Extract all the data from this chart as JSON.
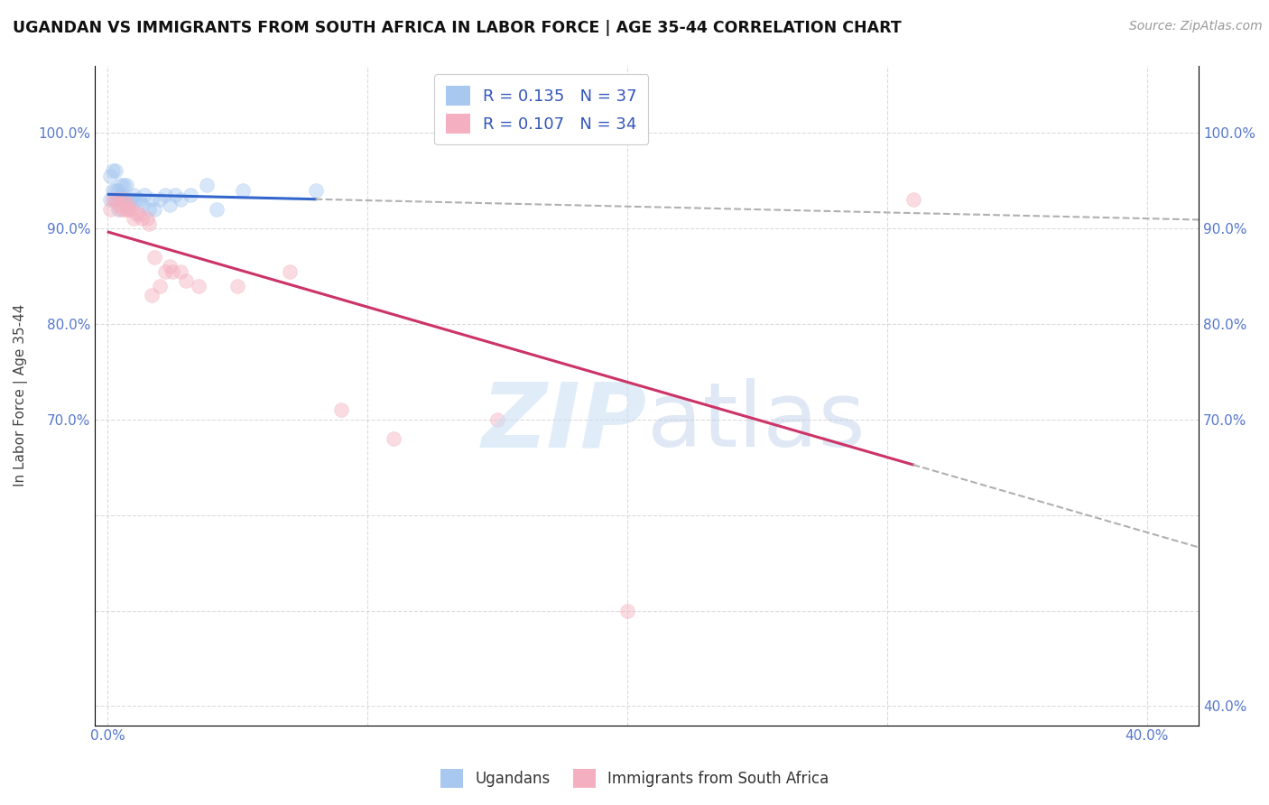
{
  "title": "UGANDAN VS IMMIGRANTS FROM SOUTH AFRICA IN LABOR FORCE | AGE 35-44 CORRELATION CHART",
  "source": "Source: ZipAtlas.com",
  "ylabel": "In Labor Force | Age 35-44",
  "ugandan_R": 0.135,
  "ugandan_N": 37,
  "immigrant_R": 0.107,
  "immigrant_N": 34,
  "ugandan_color": "#a8c8f0",
  "immigrant_color": "#f4b0c0",
  "ugandan_line_color": "#3366cc",
  "immigrant_line_color": "#cc3366",
  "trend_ext_color": "#b0b0b0",
  "background_color": "#ffffff",
  "xlim": [
    -0.005,
    0.42
  ],
  "ylim": [
    0.38,
    1.07
  ],
  "x_ticks": [
    0.0,
    0.1,
    0.2,
    0.3,
    0.4
  ],
  "x_tick_labels": [
    "0.0%",
    "",
    "",
    "",
    "40.0%"
  ],
  "y_ticks": [
    0.4,
    0.5,
    0.6,
    0.7,
    0.8,
    0.9,
    1.0
  ],
  "y_tick_labels_left": [
    "",
    "",
    "",
    "70.0%",
    "80.0%",
    "90.0%",
    "100.0%"
  ],
  "y_tick_labels_right": [
    "40.0%",
    "",
    "",
    "70.0%",
    "80.0%",
    "90.0%",
    "100.0%"
  ],
  "grid_color": "#cccccc",
  "marker_size": 130,
  "marker_alpha": 0.45,
  "ugandan_x": [
    0.001,
    0.001,
    0.002,
    0.002,
    0.003,
    0.003,
    0.003,
    0.004,
    0.004,
    0.004,
    0.005,
    0.005,
    0.005,
    0.006,
    0.006,
    0.007,
    0.007,
    0.008,
    0.009,
    0.01,
    0.011,
    0.012,
    0.013,
    0.014,
    0.016,
    0.017,
    0.018,
    0.02,
    0.022,
    0.024,
    0.026,
    0.028,
    0.032,
    0.038,
    0.042,
    0.052,
    0.08
  ],
  "ugandan_y": [
    0.93,
    0.955,
    0.94,
    0.96,
    0.94,
    0.96,
    0.93,
    0.94,
    0.93,
    0.92,
    0.945,
    0.935,
    0.93,
    0.945,
    0.93,
    0.945,
    0.925,
    0.93,
    0.93,
    0.935,
    0.93,
    0.93,
    0.925,
    0.935,
    0.92,
    0.93,
    0.92,
    0.93,
    0.935,
    0.925,
    0.935,
    0.93,
    0.935,
    0.945,
    0.92,
    0.94,
    0.94
  ],
  "immigrant_x": [
    0.001,
    0.002,
    0.003,
    0.004,
    0.005,
    0.005,
    0.006,
    0.006,
    0.007,
    0.008,
    0.008,
    0.009,
    0.01,
    0.011,
    0.012,
    0.013,
    0.015,
    0.016,
    0.017,
    0.018,
    0.02,
    0.022,
    0.024,
    0.025,
    0.028,
    0.03,
    0.035,
    0.05,
    0.07,
    0.09,
    0.11,
    0.15,
    0.2,
    0.31
  ],
  "immigrant_y": [
    0.92,
    0.93,
    0.93,
    0.925,
    0.93,
    0.92,
    0.93,
    0.92,
    0.92,
    0.925,
    0.92,
    0.92,
    0.91,
    0.915,
    0.915,
    0.91,
    0.91,
    0.905,
    0.83,
    0.87,
    0.84,
    0.855,
    0.86,
    0.855,
    0.855,
    0.845,
    0.84,
    0.84,
    0.855,
    0.71,
    0.68,
    0.7,
    0.5,
    0.93
  ]
}
